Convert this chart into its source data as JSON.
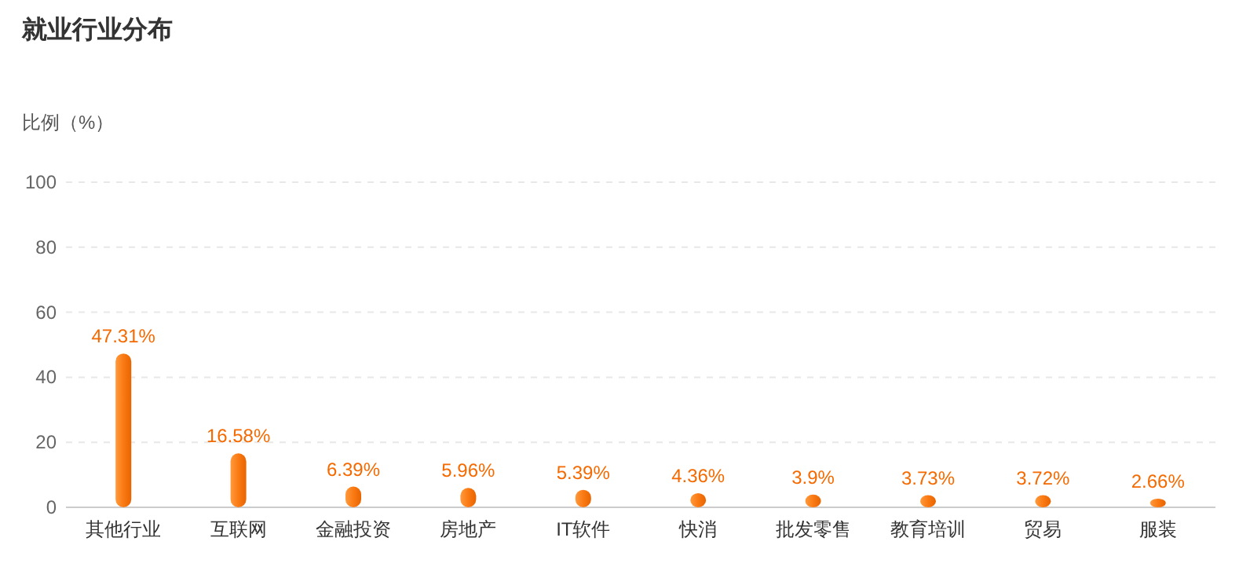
{
  "chart_data": {
    "type": "bar",
    "title": "就业行业分布",
    "ylabel": "比例（%）",
    "categories": [
      "其他行业",
      "互联网",
      "金融投资",
      "房地产",
      "IT软件",
      "快消",
      "批发零售",
      "教育培训",
      "贸易",
      "服装"
    ],
    "series": [
      {
        "color": "#fa7a14",
        "values": [
          47.31,
          16.58,
          6.39,
          5.96,
          5.39,
          4.36,
          3.9,
          3.73,
          3.72,
          2.66
        ],
        "value_labels": [
          "47.31%",
          "16.58%",
          "6.39%",
          "5.96%",
          "5.39%",
          "4.36%",
          "3.9%",
          "3.73%",
          "3.72%",
          "2.66%"
        ]
      }
    ],
    "ylim": [
      0,
      100
    ],
    "yticks": [
      0,
      20,
      40,
      60,
      80,
      100
    ],
    "grid": "y"
  }
}
